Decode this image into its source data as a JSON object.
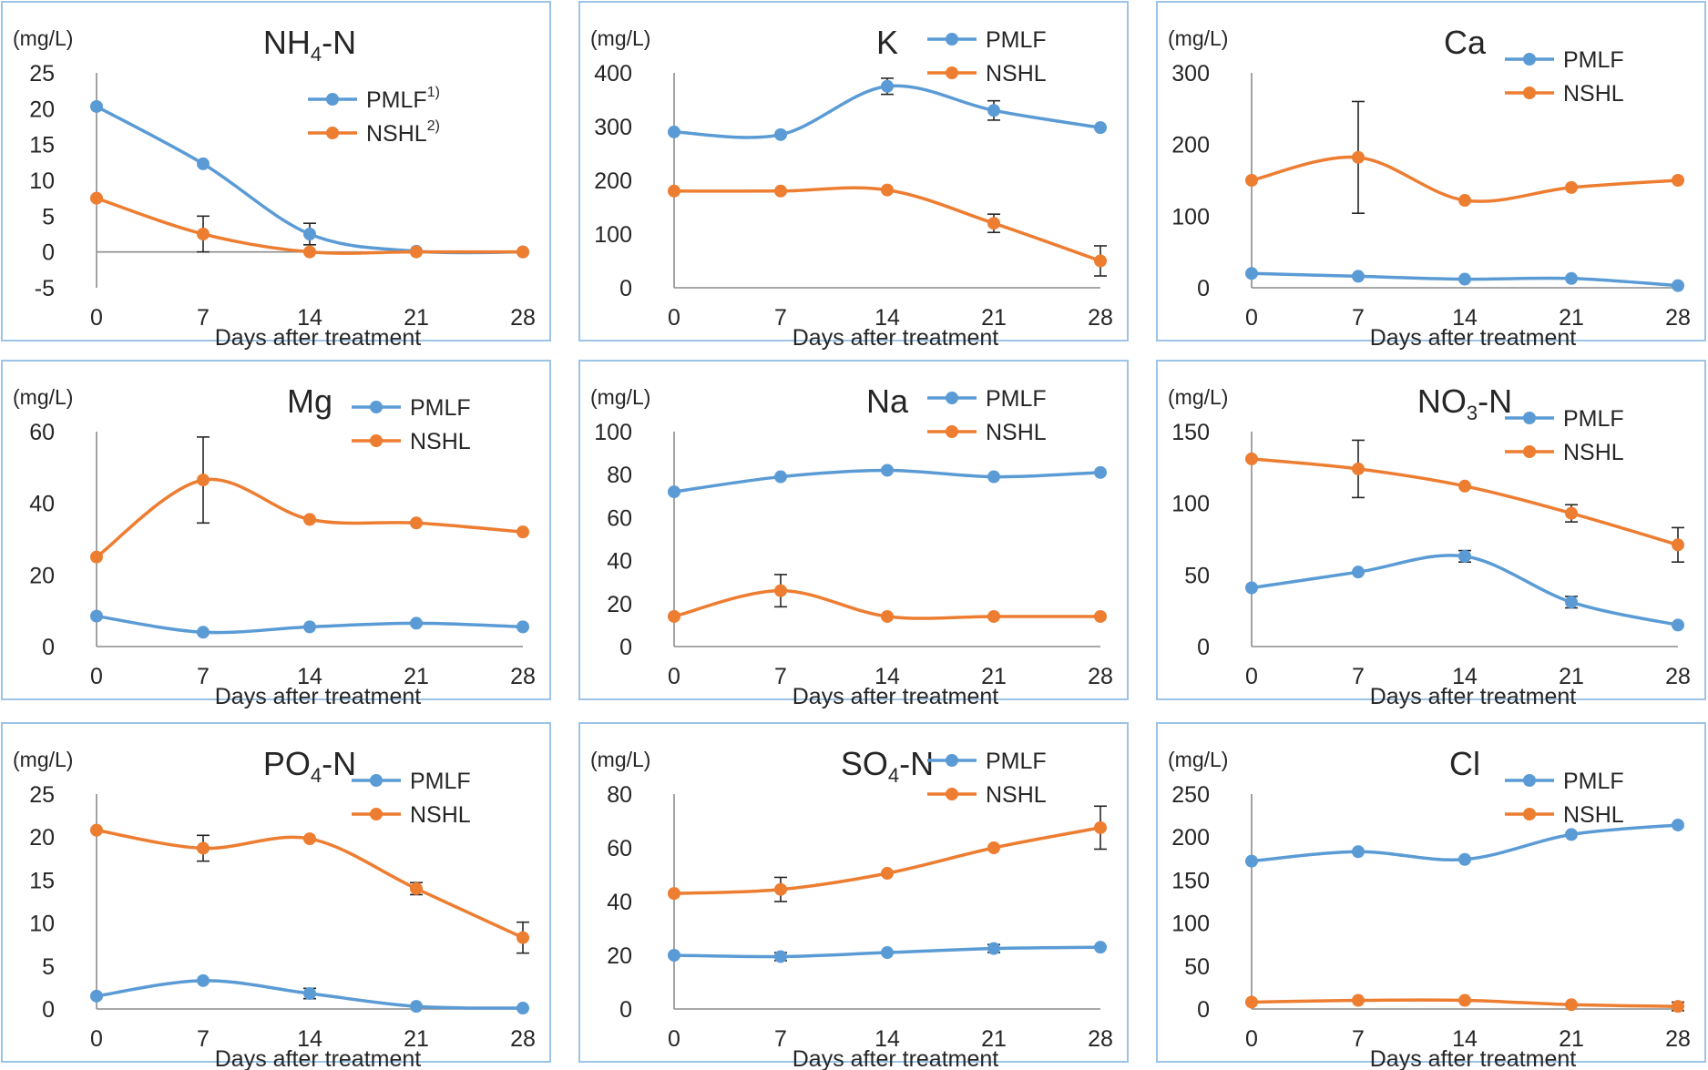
{
  "colors": {
    "PMLF": "#5b9bd5",
    "NSHL": "#ed7d31",
    "frame": "#9dc3e6",
    "axis": "#8c8c8c"
  },
  "chart_data": [
    {
      "type": "line",
      "title_main": "NH",
      "title_sub": "4",
      "title_rest": "-N",
      "unit": "(mg/L)",
      "xlabel": "Days  after treatment",
      "x": [
        0,
        7,
        14,
        21,
        28
      ],
      "ylim": [
        -5,
        25
      ],
      "yticks": [
        -5,
        0,
        5,
        10,
        15,
        20,
        25
      ],
      "xaxis_at": 0,
      "legend_pos": "middle-right",
      "series": [
        {
          "name": "PMLF",
          "sup": "1)",
          "values": [
            20.3,
            12.3,
            2.5,
            0.1,
            0
          ],
          "errors": [
            0,
            0,
            1.5,
            0,
            0
          ]
        },
        {
          "name": "NSHL",
          "sup": "2)",
          "values": [
            7.5,
            2.5,
            0,
            0,
            0
          ],
          "errors": [
            0,
            2.5,
            0,
            0,
            0
          ]
        }
      ]
    },
    {
      "type": "line",
      "title_main": "K",
      "title_sub": "",
      "title_rest": "",
      "unit": "(mg/L)",
      "xlabel": "Days  after treatment",
      "x": [
        0,
        7,
        14,
        21,
        28
      ],
      "ylim": [
        0,
        400
      ],
      "yticks": [
        0,
        100,
        200,
        300,
        400
      ],
      "xaxis_at": 0,
      "legend_pos": "top-right",
      "series": [
        {
          "name": "PMLF",
          "sup": "",
          "values": [
            290,
            285,
            375,
            330,
            298
          ],
          "errors": [
            0,
            0,
            15,
            18,
            0
          ]
        },
        {
          "name": "NSHL",
          "sup": "",
          "values": [
            180,
            180,
            182,
            120,
            50
          ],
          "errors": [
            0,
            0,
            0,
            17,
            28
          ]
        }
      ]
    },
    {
      "type": "line",
      "title_main": "Ca",
      "title_sub": "",
      "title_rest": "",
      "unit": "(mg/L)",
      "xlabel": "Days  after treatment",
      "x": [
        0,
        7,
        14,
        21,
        28
      ],
      "ylim": [
        0,
        300
      ],
      "yticks": [
        0,
        100,
        200,
        300
      ],
      "xaxis_at": 0,
      "legend_pos": "top-right",
      "series": [
        {
          "name": "PMLF",
          "sup": "",
          "values": [
            20,
            16,
            12,
            13,
            3
          ],
          "errors": [
            0,
            0,
            0,
            0,
            0
          ]
        },
        {
          "name": "NSHL",
          "sup": "",
          "values": [
            150,
            182,
            122,
            140,
            150
          ],
          "errors": [
            0,
            78,
            0,
            0,
            0
          ]
        }
      ]
    },
    {
      "type": "line",
      "title_main": "Mg",
      "title_sub": "",
      "title_rest": "",
      "unit": "(mg/L)",
      "xlabel": "Days  after treatment",
      "x": [
        0,
        7,
        14,
        21,
        28
      ],
      "ylim": [
        0,
        60
      ],
      "yticks": [
        0,
        20,
        40,
        60
      ],
      "xaxis_at": 0,
      "legend_pos": "top-right",
      "series": [
        {
          "name": "PMLF",
          "sup": "",
          "values": [
            8.5,
            4,
            5.5,
            6.5,
            5.5
          ],
          "errors": [
            0,
            0,
            0,
            0,
            0
          ]
        },
        {
          "name": "NSHL",
          "sup": "",
          "values": [
            25,
            46.5,
            35.5,
            34.5,
            32
          ],
          "errors": [
            0,
            12,
            0,
            0,
            0
          ]
        }
      ]
    },
    {
      "type": "line",
      "title_main": "Na",
      "title_sub": "",
      "title_rest": "",
      "unit": "(mg/L)",
      "xlabel": "Days  after treatment",
      "x": [
        0,
        7,
        14,
        21,
        28
      ],
      "ylim": [
        0,
        100
      ],
      "yticks": [
        0,
        20,
        40,
        60,
        80,
        100
      ],
      "xaxis_at": 0,
      "legend_pos": "top-right",
      "series": [
        {
          "name": "PMLF",
          "sup": "",
          "values": [
            72,
            79,
            82,
            79,
            81
          ],
          "errors": [
            0,
            0,
            0,
            0,
            0
          ]
        },
        {
          "name": "NSHL",
          "sup": "",
          "values": [
            14,
            26,
            14,
            14,
            14
          ],
          "errors": [
            0,
            7.5,
            0,
            0,
            0
          ]
        }
      ]
    },
    {
      "type": "line",
      "title_main": "NO",
      "title_sub": "3",
      "title_rest": "-N",
      "unit": "(mg/L)",
      "xlabel": "Days  after treatment",
      "x": [
        0,
        7,
        14,
        21,
        28
      ],
      "ylim": [
        0,
        150
      ],
      "yticks": [
        0,
        50,
        100,
        150
      ],
      "xaxis_at": 0,
      "legend_pos": "top-right",
      "series": [
        {
          "name": "PMLF",
          "sup": "",
          "values": [
            41,
            52,
            63,
            31,
            15
          ],
          "errors": [
            0,
            0,
            4,
            4,
            0
          ]
        },
        {
          "name": "NSHL",
          "sup": "",
          "values": [
            131,
            124,
            112,
            93,
            71
          ],
          "errors": [
            0,
            20,
            0,
            6,
            12
          ]
        }
      ]
    },
    {
      "type": "line",
      "title_main": "PO",
      "title_sub": "4",
      "title_rest": "-N",
      "unit": "(mg/L)",
      "xlabel": "Days  after treatment",
      "x": [
        0,
        7,
        14,
        21,
        28
      ],
      "ylim": [
        0,
        25
      ],
      "yticks": [
        0,
        5,
        10,
        15,
        20,
        25
      ],
      "xaxis_at": 0,
      "legend_pos": "top-right",
      "series": [
        {
          "name": "PMLF",
          "sup": "",
          "values": [
            1.5,
            3.3,
            1.8,
            0.3,
            0.1
          ],
          "errors": [
            0,
            0,
            0.6,
            0,
            0
          ]
        },
        {
          "name": "NSHL",
          "sup": "",
          "values": [
            20.8,
            18.7,
            19.8,
            14,
            8.3
          ],
          "errors": [
            0,
            1.5,
            0,
            0.7,
            1.8
          ]
        }
      ]
    },
    {
      "type": "line",
      "title_main": "SO",
      "title_sub": "4",
      "title_rest": "-N",
      "unit": "(mg/L)",
      "xlabel": "Days  after treatment",
      "x": [
        0,
        7,
        14,
        21,
        28
      ],
      "ylim": [
        0,
        80
      ],
      "yticks": [
        0,
        20,
        40,
        60,
        80
      ],
      "xaxis_at": 0,
      "legend_pos": "top-right",
      "series": [
        {
          "name": "PMLF",
          "sup": "",
          "values": [
            20,
            19.5,
            21,
            22.5,
            23
          ],
          "errors": [
            0,
            1.5,
            0,
            1.5,
            0
          ]
        },
        {
          "name": "NSHL",
          "sup": "",
          "values": [
            43,
            44.5,
            50.5,
            60,
            67.5
          ],
          "errors": [
            0,
            4.5,
            0,
            0,
            8
          ]
        }
      ]
    },
    {
      "type": "line",
      "title_main": "Cl",
      "title_sub": "",
      "title_rest": "",
      "unit": "(mg/L)",
      "xlabel": "Days  after treatment",
      "x": [
        0,
        7,
        14,
        21,
        28
      ],
      "ylim": [
        0,
        250
      ],
      "yticks": [
        0,
        50,
        100,
        150,
        200,
        250
      ],
      "xaxis_at": 0,
      "legend_pos": "top-right",
      "series": [
        {
          "name": "PMLF",
          "sup": "",
          "values": [
            172,
            183,
            174,
            203,
            214
          ],
          "errors": [
            0,
            0,
            0,
            0,
            0
          ]
        },
        {
          "name": "NSHL",
          "sup": "",
          "values": [
            8,
            10,
            10,
            5,
            3
          ],
          "errors": [
            0,
            0,
            0,
            0,
            5
          ]
        }
      ]
    }
  ]
}
